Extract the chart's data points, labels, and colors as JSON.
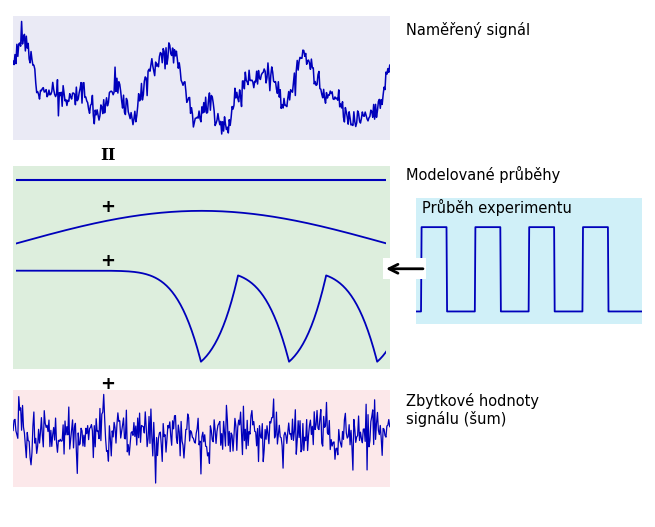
{
  "bg_color": "#ffffff",
  "line_color": "#0000bb",
  "box1_bg": "#eaeaf5",
  "box2_bg": "#ddeedd",
  "box3_bg": "#fce8ea",
  "box4_bg": "#d0f0f8",
  "label1": "Naměřený signál",
  "label2": "Modelované průběhy",
  "label3": "Zbytkové hodnoty\nsignálu (šum)",
  "label4": "Průběh experimentu",
  "font_size": 10.5
}
